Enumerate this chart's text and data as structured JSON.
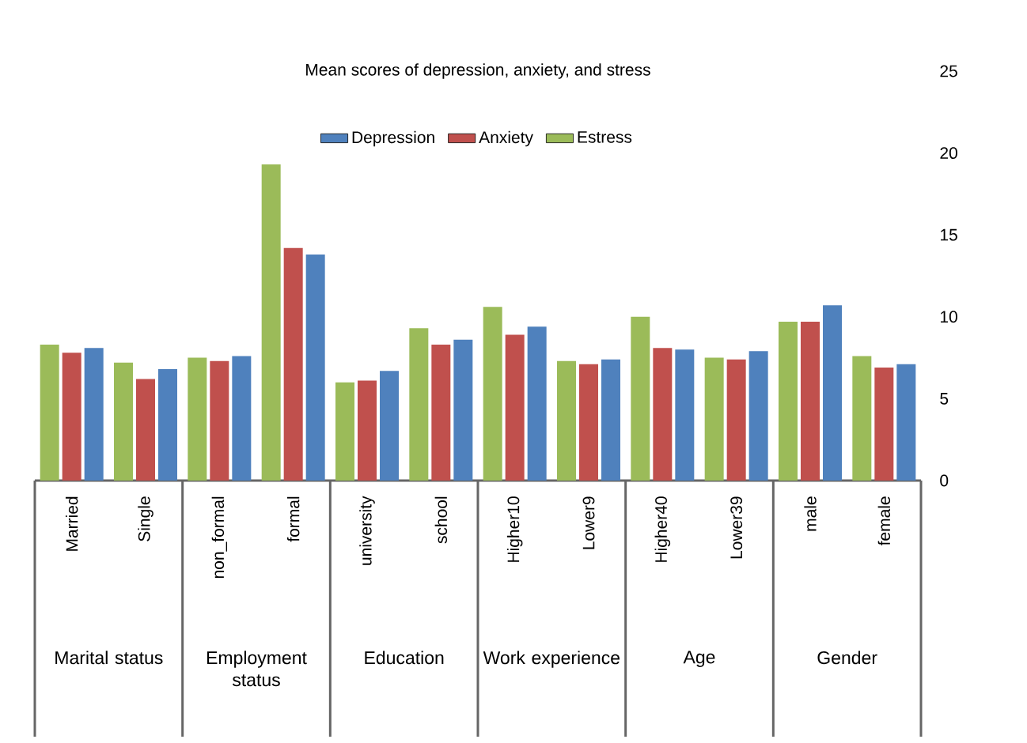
{
  "chart_data": {
    "type": "bar",
    "title": "Mean scores of depression, anxiety, and stress",
    "categories": [
      "Married",
      "Single",
      "non_formal",
      "formal",
      "university",
      "school",
      "Higher10",
      "Lower9",
      "Higher40",
      "Lower39",
      "male",
      "female"
    ],
    "series": [
      {
        "name": "Estress",
        "color": "#9bbb59",
        "values": [
          8.3,
          7.2,
          7.5,
          19.3,
          6.0,
          9.3,
          10.6,
          7.3,
          10.0,
          7.5,
          9.7,
          7.6
        ]
      },
      {
        "name": "Anxiety",
        "color": "#c0504d",
        "values": [
          7.8,
          6.2,
          7.3,
          14.2,
          6.1,
          8.3,
          8.9,
          7.1,
          8.1,
          7.4,
          9.7,
          6.9
        ]
      },
      {
        "name": "Depression",
        "color": "#4f81bd",
        "values": [
          8.1,
          6.8,
          7.6,
          13.8,
          6.7,
          8.6,
          9.4,
          7.4,
          8.0,
          7.9,
          10.7,
          7.1
        ]
      }
    ],
    "ylim": [
      0,
      25
    ],
    "yticks": [
      0,
      5,
      10,
      15,
      20,
      25
    ],
    "legend": "top",
    "annotations": [
      "Marital status",
      "Employment status",
      "Education",
      "Work experience",
      "Age",
      "Gender"
    ]
  }
}
